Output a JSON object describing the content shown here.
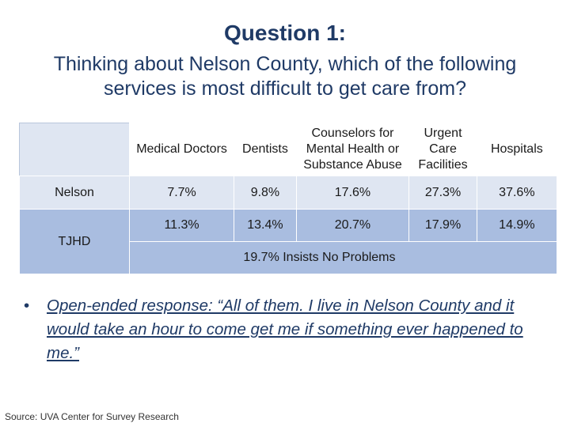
{
  "slide": {
    "title": "Question 1:",
    "subtitle": "Thinking about Nelson County, which of the following services is most difficult to get care from?"
  },
  "table": {
    "headers": [
      "Medical Doctors",
      "Dentists",
      "Counselors for Mental Health or Substance Abuse",
      "Urgent Care Facilities",
      "Hospitals"
    ],
    "rows": [
      {
        "label": "Nelson",
        "values": [
          "7.7%",
          "9.8%",
          "17.6%",
          "27.3%",
          "37.6%"
        ]
      },
      {
        "label": "TJHD",
        "values": [
          "11.3%",
          "13.4%",
          "20.7%",
          "17.9%",
          "14.9%"
        ]
      }
    ],
    "note": "19.7% Insists No Problems"
  },
  "bullet": {
    "text": "Open-ended response: “All of them.  I live in Nelson County and it would take an hour to come get me if something ever happened to me.”"
  },
  "source": "Source: UVA Center for Survey Research",
  "colors": {
    "title": "#1f3a66",
    "row_light": "#dfe6f2",
    "row_dark": "#a9bde0"
  }
}
